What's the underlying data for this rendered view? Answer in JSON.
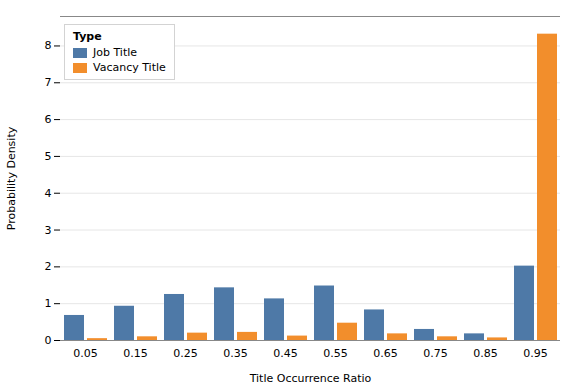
{
  "chart_data": {
    "type": "bar",
    "categories": [
      "0.05",
      "0.15",
      "0.25",
      "0.35",
      "0.45",
      "0.55",
      "0.65",
      "0.75",
      "0.85",
      "0.95"
    ],
    "series": [
      {
        "name": "Job Title",
        "values": [
          0.68,
          0.93,
          1.25,
          1.43,
          1.13,
          1.48,
          0.83,
          0.3,
          0.18,
          2.02
        ]
      },
      {
        "name": "Vacancy Title",
        "values": [
          0.05,
          0.1,
          0.2,
          0.22,
          0.12,
          0.47,
          0.18,
          0.1,
          0.07,
          8.32
        ]
      }
    ],
    "xlabel": "Title Occurrence Ratio",
    "ylabel": "Probability Density",
    "legend_title": "Type",
    "legend": "upper left",
    "ylim": [
      0,
      8.8
    ],
    "yticks": [
      0,
      1,
      2,
      3,
      4,
      5,
      6,
      7,
      8
    ],
    "grid": true
  }
}
